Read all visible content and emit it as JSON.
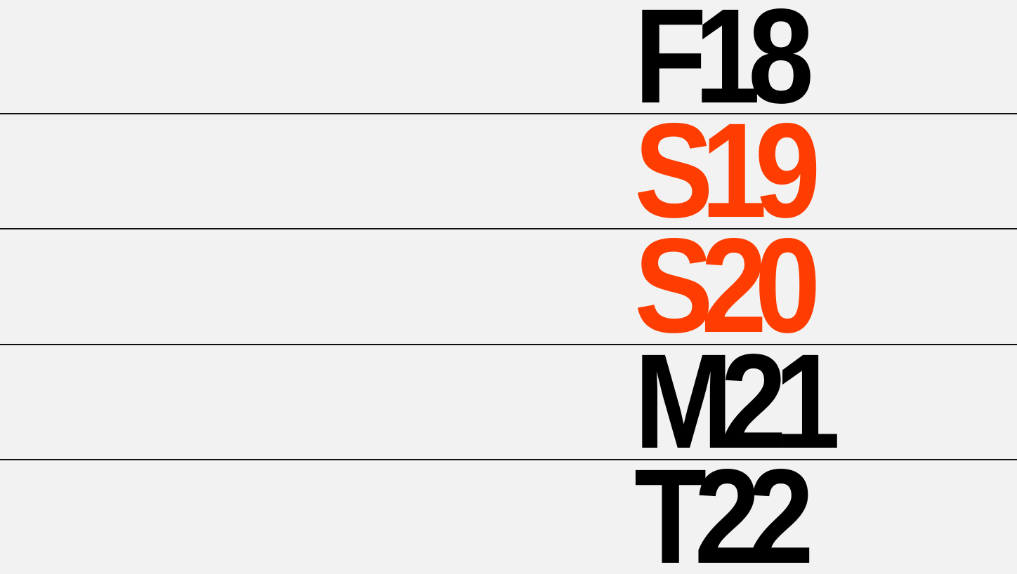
{
  "colors": {
    "background": "#f2f2f2",
    "ink": "#000000",
    "accent": "#ff3d00",
    "rule": "#111111"
  },
  "items": [
    {
      "label": "F18",
      "color": "#000000"
    },
    {
      "label": "S19",
      "color": "#ff3d00"
    },
    {
      "label": "S20",
      "color": "#ff3d00"
    },
    {
      "label": "M21",
      "color": "#000000"
    },
    {
      "label": "T22",
      "color": "#000000"
    }
  ]
}
